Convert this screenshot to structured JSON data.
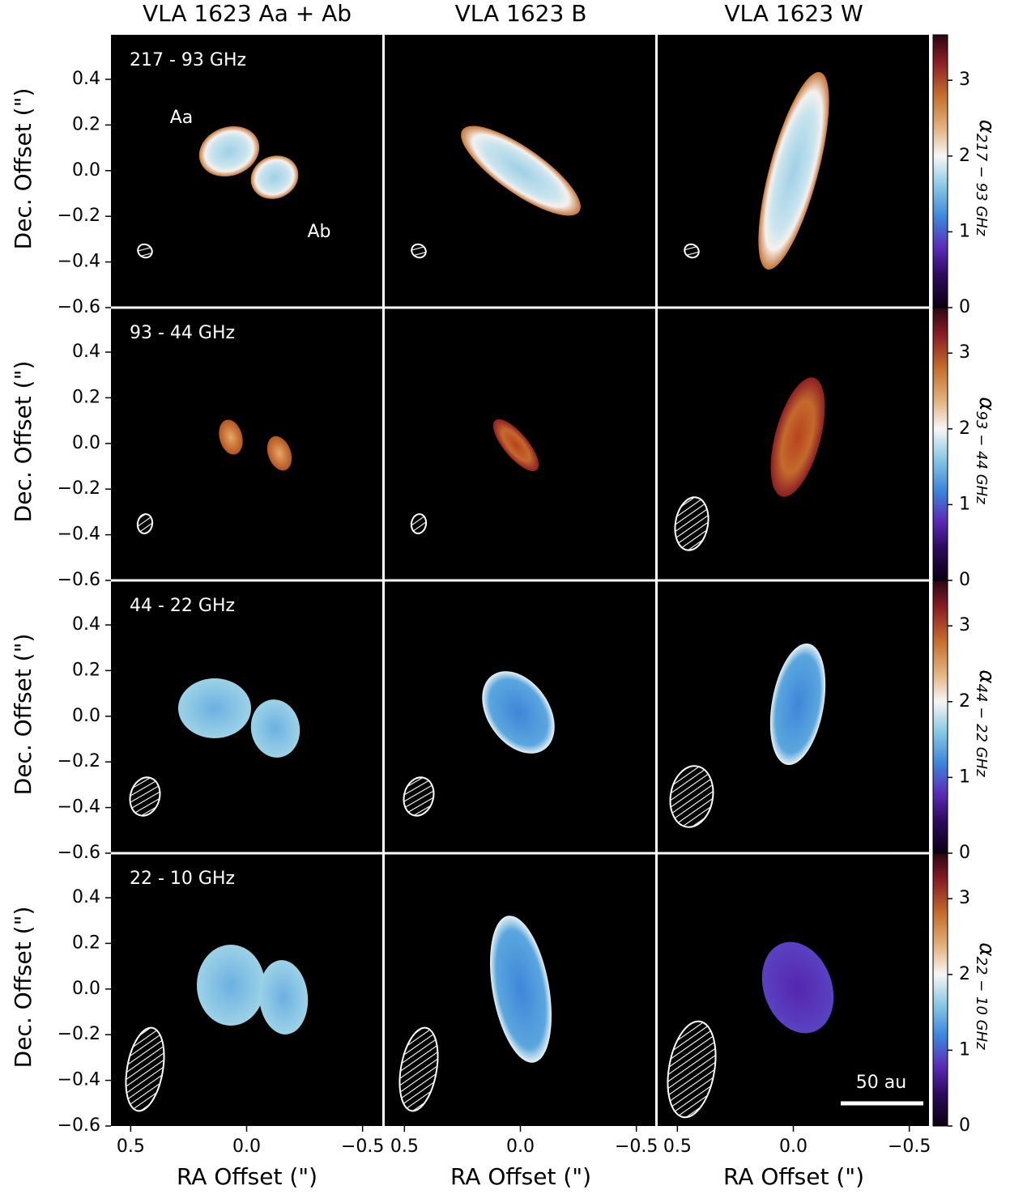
{
  "chart_data": {
    "type": "image-grid",
    "columns": [
      "VLA 1623 Aa + Ab",
      "VLA 1623 B",
      "VLA 1623 W"
    ],
    "rows": [
      {
        "label": "217 - 93 GHz",
        "colorbar_label": {
          "symbol": "α",
          "subscript": "217 − 93 GHz"
        }
      },
      {
        "label": "93 - 44 GHz",
        "colorbar_label": {
          "symbol": "α",
          "subscript": "93 − 44 GHz"
        }
      },
      {
        "label": "44 - 22 GHz",
        "colorbar_label": {
          "symbol": "α",
          "subscript": "44 − 22 GHz"
        }
      },
      {
        "label": "22 - 10 GHz",
        "colorbar_label": {
          "symbol": "α",
          "subscript": "22 − 10 GHz"
        }
      }
    ],
    "xlabel": "RA Offset (\")",
    "ylabel": "Dec. Offset (\")",
    "xlim": [
      0.585,
      -0.585
    ],
    "xticks": [
      {
        "value": 0.5,
        "label": "0.5"
      },
      {
        "value": 0,
        "label": "0.0"
      },
      {
        "value": -0.5,
        "label": "−0.5"
      }
    ],
    "ylim": [
      -0.6,
      0.595
    ],
    "yticks": [
      {
        "value": -0.6,
        "label": "−0.6"
      },
      {
        "value": -0.4,
        "label": "−0.4"
      },
      {
        "value": -0.2,
        "label": "−0.2"
      },
      {
        "value": 0,
        "label": "0.0"
      },
      0.2,
      0.4
    ],
    "colorbar": {
      "lim": [
        0,
        3.6
      ],
      "ticks": [
        0,
        1,
        2,
        3
      ]
    },
    "annotations": [
      {
        "text": "Aa"
      },
      {
        "text": "Ab"
      }
    ],
    "scalebar": {
      "label": "50 au"
    }
  }
}
